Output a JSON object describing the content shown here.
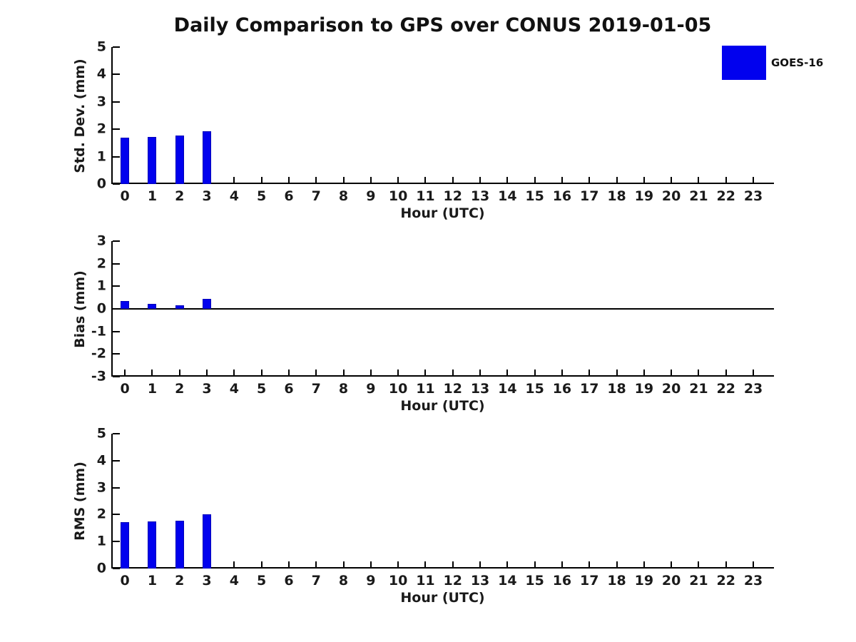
{
  "page": {
    "title": "Daily Comparison to GPS over CONUS 2019-01-05"
  },
  "legend": {
    "label": "GOES-16",
    "color": "#0101ee",
    "position": "top-right"
  },
  "colors": {
    "bar": "#0101ee",
    "bar_edge": "#0000b8",
    "axis": "#000000",
    "text": "#1a1a1a"
  },
  "chart_data": [
    {
      "type": "bar",
      "title": "",
      "ylabel": "Std. Dev. (mm)",
      "xlabel": "Hour (UTC)",
      "ylim": [
        0,
        5
      ],
      "yticks": [
        0,
        1,
        2,
        3,
        4,
        5
      ],
      "grid": false,
      "zero_line": false,
      "categories": [
        "0",
        "1",
        "2",
        "3",
        "4",
        "5",
        "6",
        "7",
        "8",
        "9",
        "10",
        "11",
        "12",
        "13",
        "14",
        "15",
        "16",
        "17",
        "18",
        "19",
        "20",
        "21",
        "22",
        "23"
      ],
      "series": [
        {
          "name": "GOES-16",
          "values": [
            1.7,
            1.72,
            1.77,
            1.92,
            null,
            null,
            null,
            null,
            null,
            null,
            null,
            null,
            null,
            null,
            null,
            null,
            null,
            null,
            null,
            null,
            null,
            null,
            null,
            null
          ]
        }
      ]
    },
    {
      "type": "bar",
      "title": "",
      "ylabel": "Bias (mm)",
      "xlabel": "Hour (UTC)",
      "ylim": [
        -3,
        3
      ],
      "yticks": [
        -3,
        -2,
        -1,
        0,
        1,
        2,
        3
      ],
      "grid": false,
      "zero_line": true,
      "categories": [
        "0",
        "1",
        "2",
        "3",
        "4",
        "5",
        "6",
        "7",
        "8",
        "9",
        "10",
        "11",
        "12",
        "13",
        "14",
        "15",
        "16",
        "17",
        "18",
        "19",
        "20",
        "21",
        "22",
        "23"
      ],
      "series": [
        {
          "name": "GOES-16",
          "values": [
            0.35,
            0.23,
            0.17,
            0.45,
            null,
            null,
            null,
            null,
            null,
            null,
            null,
            null,
            null,
            null,
            null,
            null,
            null,
            null,
            null,
            null,
            null,
            null,
            null,
            null
          ]
        }
      ]
    },
    {
      "type": "bar",
      "title": "",
      "ylabel": "RMS (mm)",
      "xlabel": "Hour (UTC)",
      "ylim": [
        0,
        5
      ],
      "yticks": [
        0,
        1,
        2,
        3,
        4,
        5
      ],
      "grid": false,
      "zero_line": false,
      "categories": [
        "0",
        "1",
        "2",
        "3",
        "4",
        "5",
        "6",
        "7",
        "8",
        "9",
        "10",
        "11",
        "12",
        "13",
        "14",
        "15",
        "16",
        "17",
        "18",
        "19",
        "20",
        "21",
        "22",
        "23"
      ],
      "series": [
        {
          "name": "GOES-16",
          "values": [
            1.72,
            1.75,
            1.78,
            2.0,
            null,
            null,
            null,
            null,
            null,
            null,
            null,
            null,
            null,
            null,
            null,
            null,
            null,
            null,
            null,
            null,
            null,
            null,
            null,
            null
          ]
        }
      ]
    }
  ]
}
